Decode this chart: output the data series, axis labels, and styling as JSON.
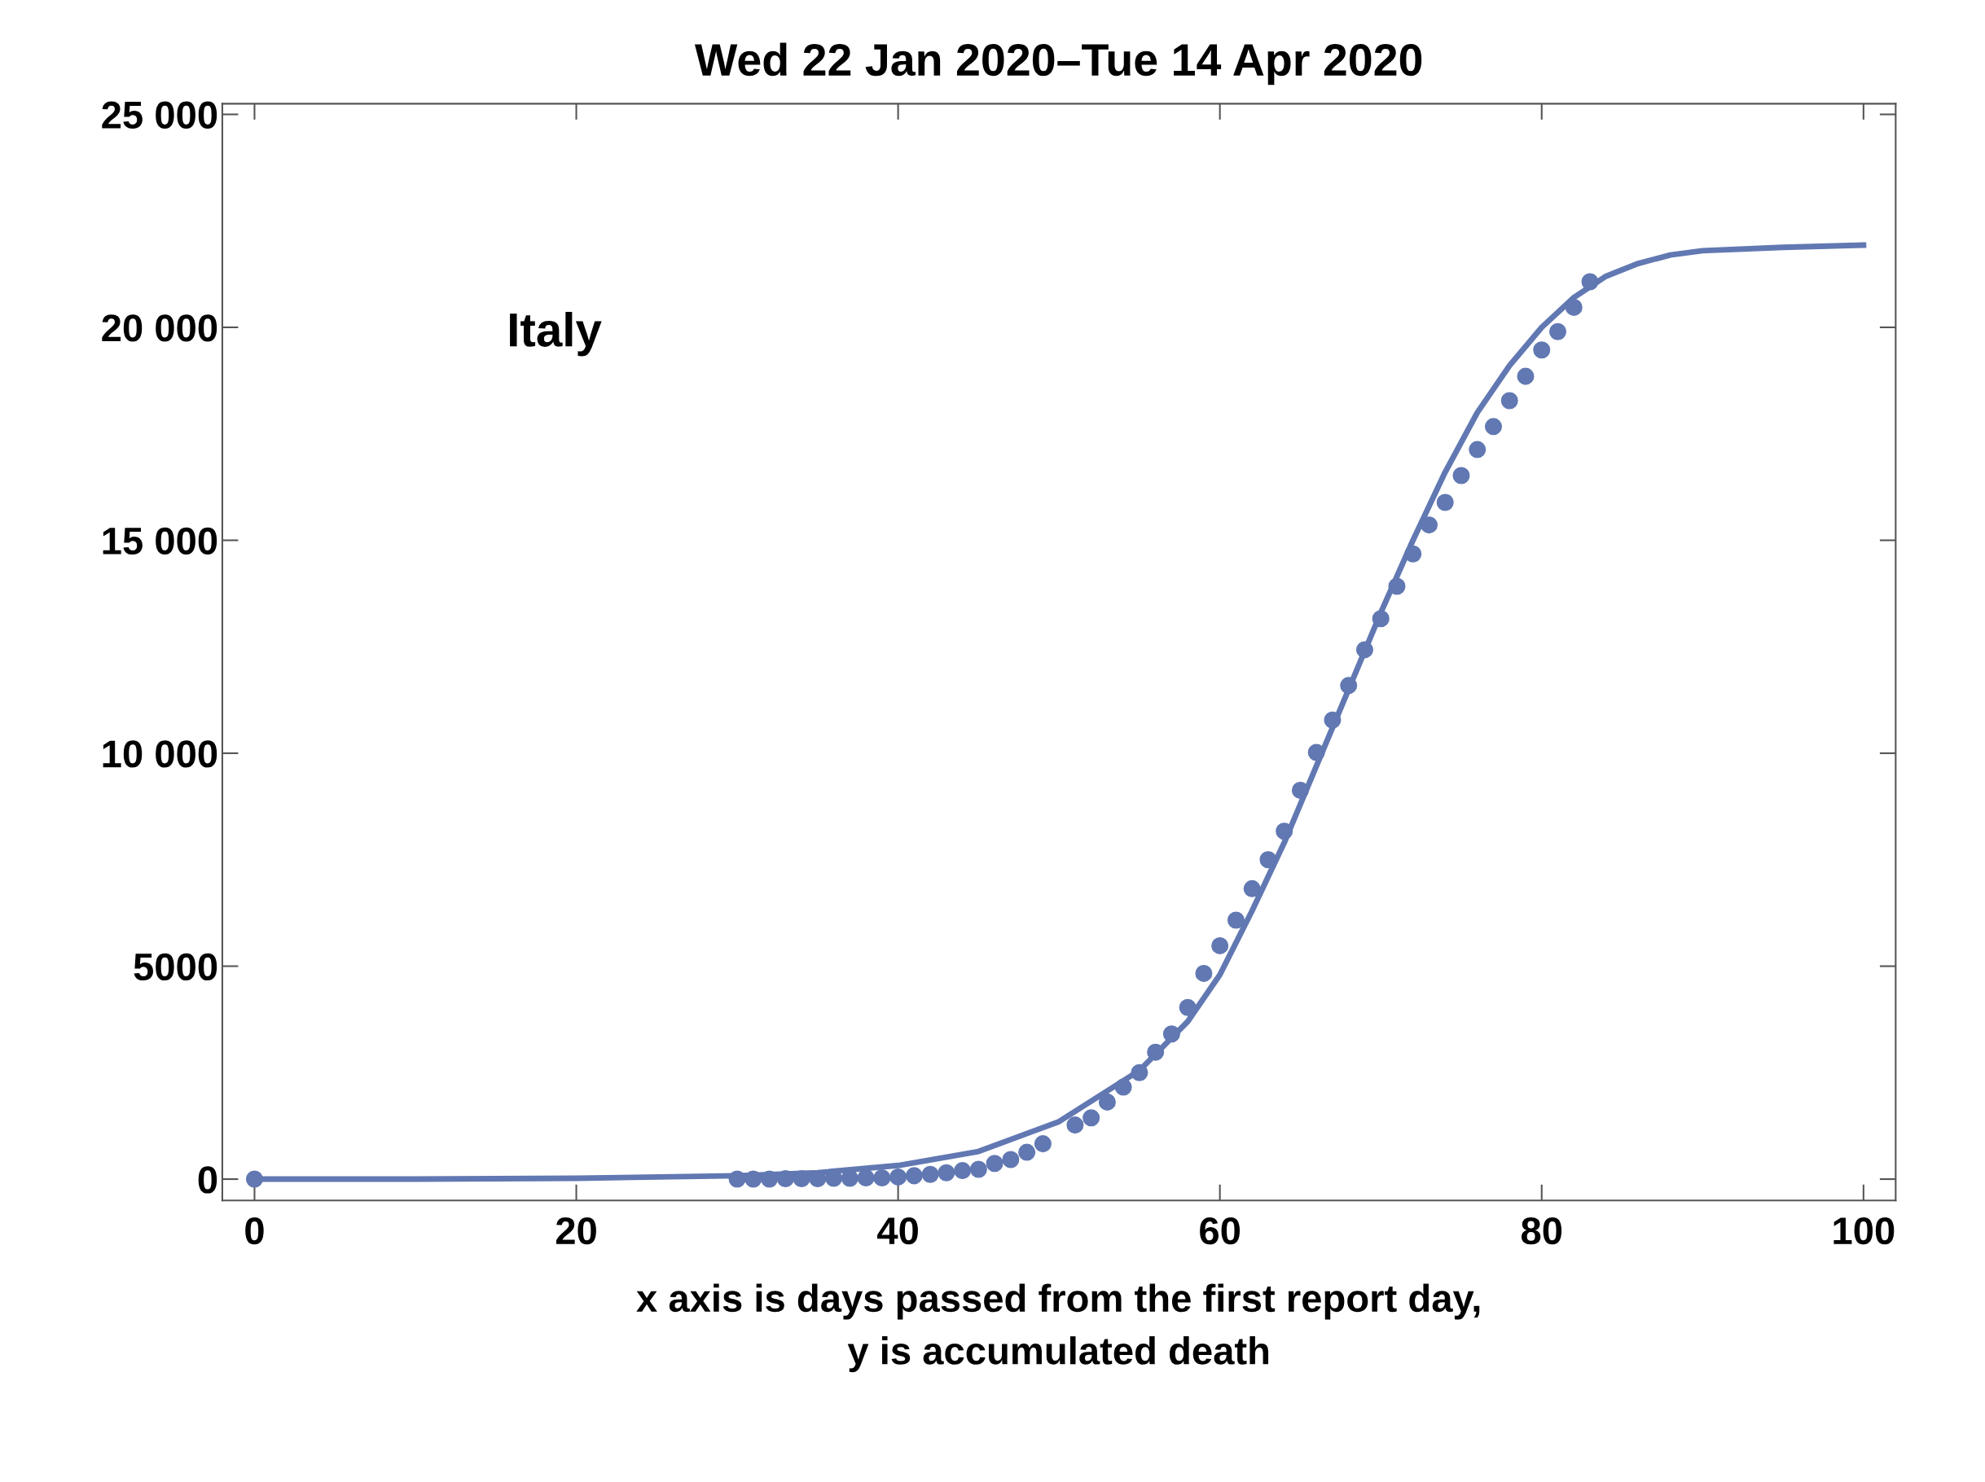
{
  "chart_data": {
    "type": "scatter",
    "title": "Wed 22 Jan 2020–Tue 14 Apr 2020",
    "xlabel": "x axis is days passed from the first report day,\ny is accumulated death",
    "annotations": [
      "Italy"
    ],
    "series": [
      {
        "color": "#6178b2",
        "marker": "circle",
        "x": [
          0,
          30,
          31,
          32,
          33,
          34,
          35,
          36,
          37,
          38,
          39,
          40,
          41,
          42,
          43,
          44,
          45,
          46,
          47,
          48,
          49,
          51,
          52,
          53,
          54,
          55,
          56,
          57,
          58,
          59,
          60,
          61,
          62,
          63,
          64,
          65,
          66,
          67,
          68,
          69,
          70,
          71,
          72,
          73,
          74,
          75,
          76,
          77,
          78,
          79,
          80,
          81,
          82,
          83
        ],
        "values": [
          0,
          0,
          0,
          0,
          10,
          10,
          10,
          20,
          20,
          30,
          30,
          50,
          80,
          110,
          150,
          200,
          230,
          370,
          460,
          630,
          830,
          1270,
          1440,
          1810,
          2160,
          2500,
          2980,
          3410,
          4030,
          4830,
          5480,
          6080,
          6820,
          7500,
          8170,
          9130,
          10020,
          10780,
          11590,
          12430,
          13160,
          13920,
          14680,
          15360,
          15890,
          16520,
          17130,
          17670,
          18280,
          18850,
          19470,
          19900,
          20470,
          21070
        ]
      },
      {
        "type": "line",
        "color": "#6178b2",
        "line_style": "solid",
        "x": [
          0,
          10,
          20,
          30,
          35,
          40,
          45,
          50,
          55,
          58,
          60,
          62,
          64,
          66,
          68,
          70,
          72,
          74,
          76,
          78,
          80,
          82,
          84,
          86,
          88,
          90,
          95,
          100
        ],
        "values": [
          0,
          0,
          20,
          80,
          150,
          320,
          650,
          1350,
          2550,
          3700,
          4800,
          6300,
          7900,
          9700,
          11500,
          13300,
          15000,
          16600,
          18000,
          19100,
          20000,
          20700,
          21200,
          21500,
          21700,
          21800,
          21880,
          21930
        ]
      }
    ],
    "xlim": [
      -2,
      102
    ],
    "ylim": [
      -500,
      25250
    ],
    "xticks": [
      0,
      20,
      40,
      60,
      80,
      100
    ],
    "yticks": [
      0,
      5000,
      {
        "value": 10000,
        "label": "10 000"
      },
      {
        "value": 15000,
        "label": "15 000"
      },
      {
        "value": 20000,
        "label": "20 000"
      },
      {
        "value": 25000,
        "label": "25 000"
      }
    ],
    "grid": false,
    "legend": false
  }
}
